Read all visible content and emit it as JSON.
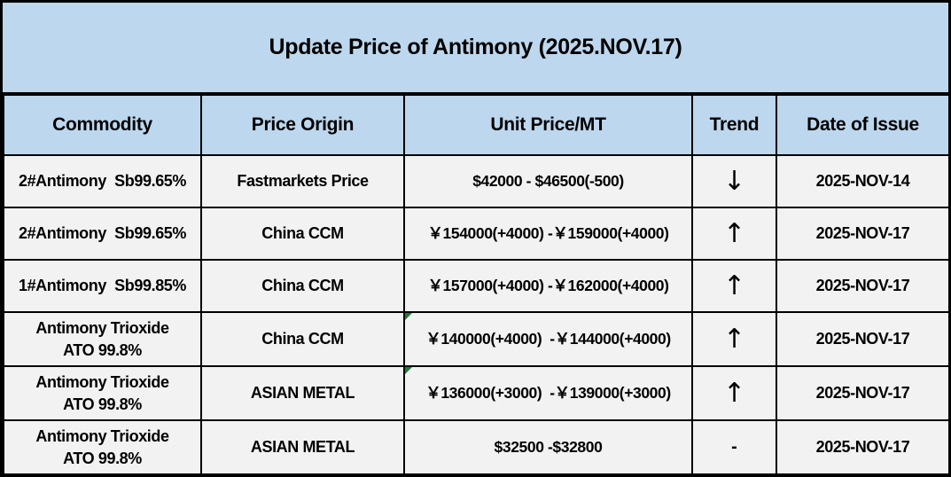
{
  "title": "Update Price of Antimony (2025.NOV.17)",
  "colors": {
    "title_header_bg": "#BDD7EE",
    "row_bg": "#F2F2F2",
    "grid_border": "#000000",
    "flag_triangle": "#1E7B34"
  },
  "table": {
    "headers": {
      "commodity": "Commodity",
      "origin": "Price Origin",
      "price": "Unit Price/MT",
      "trend": "Trend",
      "date": "Date of Issue"
    },
    "rows": [
      {
        "commodity": "2#Antimony  Sb99.65%",
        "origin": "Fastmarkets Price",
        "price": "$42000 - $46500(-500)",
        "trend": "↓",
        "date": "2025-NOV-14"
      },
      {
        "commodity": "2#Antimony  Sb99.65%",
        "origin": "China CCM",
        "price": "￥154000(+4000) -￥159000(+4000)",
        "trend": "↑",
        "date": "2025-NOV-17"
      },
      {
        "commodity": "1#Antimony  Sb99.85%",
        "origin": "China CCM",
        "price": "￥157000(+4000) -￥162000(+4000)",
        "trend": "↑",
        "date": "2025-NOV-17"
      },
      {
        "commodity": "Antimony Trioxide",
        "commodity2": "ATO 99.8%",
        "origin": "China CCM",
        "price": "￥140000(+4000)  -￥144000(+4000)",
        "trend": "↑",
        "date": "2025-NOV-17"
      },
      {
        "commodity": "Antimony Trioxide",
        "commodity2": "ATO 99.8%",
        "origin": "ASIAN METAL",
        "price": "￥136000(+3000)  -￥139000(+3000)",
        "trend": "↑",
        "date": "2025-NOV-17"
      },
      {
        "commodity": "Antimony Trioxide",
        "commodity2": "ATO 99.8%",
        "origin": "ASIAN METAL",
        "price": "$32500 -$32800",
        "trend": "-",
        "date": "2025-NOV-17"
      }
    ]
  }
}
